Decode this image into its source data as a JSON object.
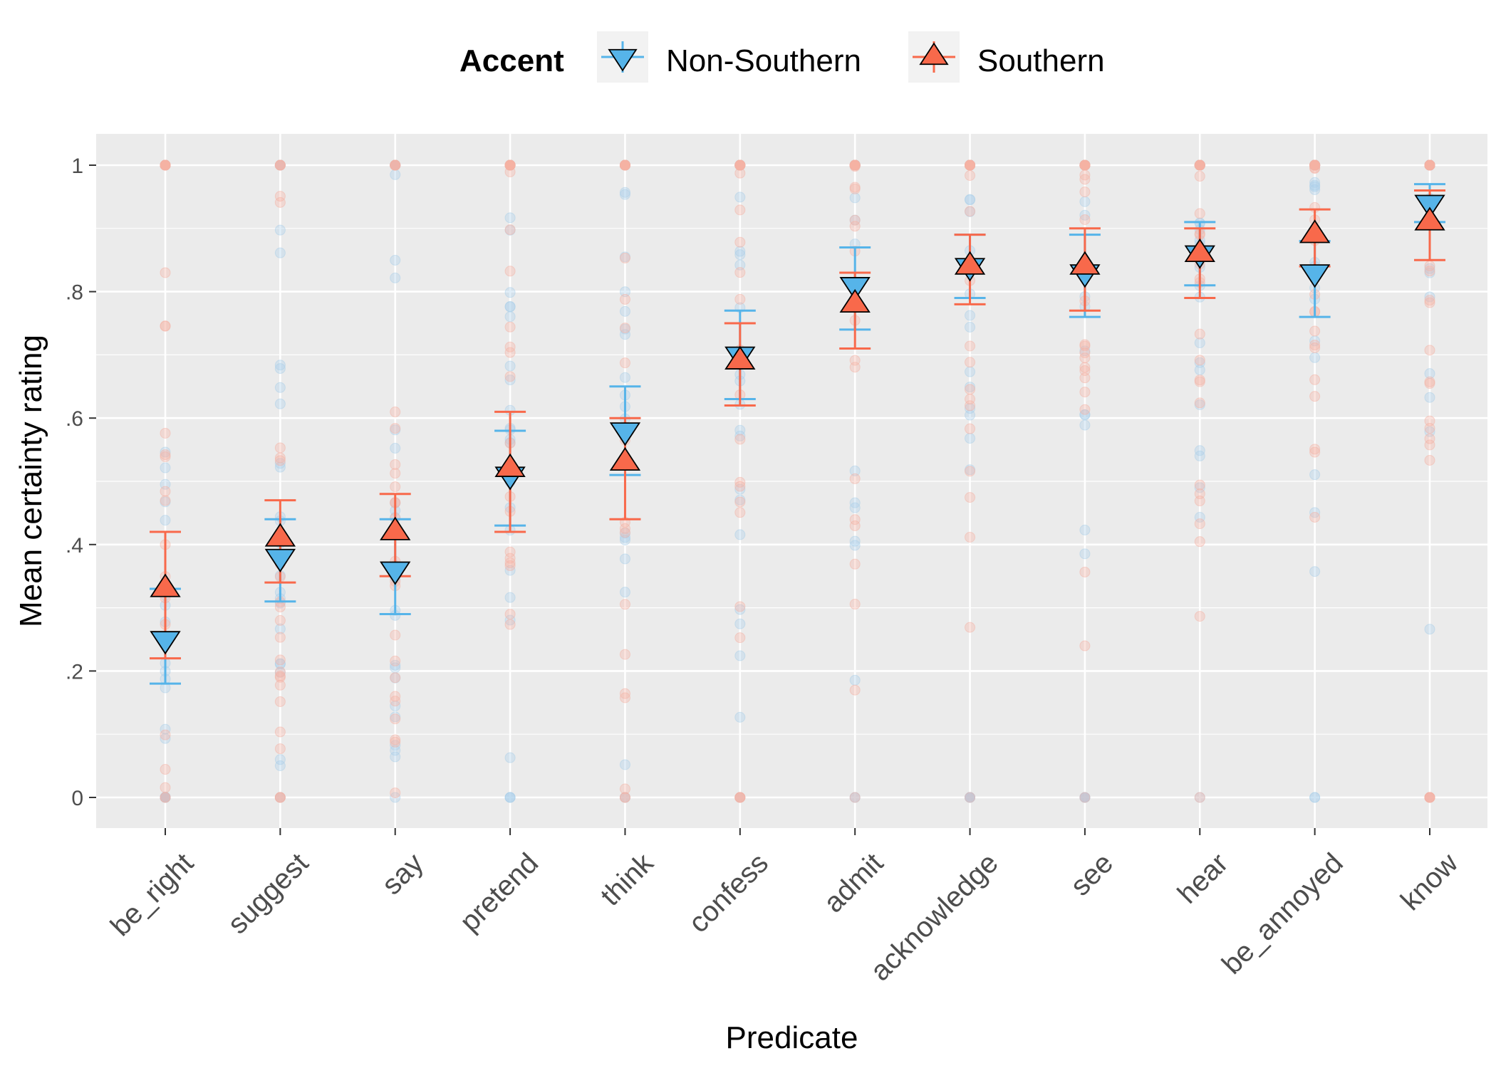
{
  "chart_data": {
    "type": "scatter",
    "title": "",
    "xlabel": "Predicate",
    "ylabel": "Mean certainty rating",
    "ylim": [
      -0.05,
      1.05
    ],
    "y_ticks": [
      0,
      0.2,
      0.4,
      0.6,
      0.8,
      1.0
    ],
    "y_tick_labels": [
      "0",
      ".2",
      ".4",
      ".6",
      ".8",
      "1"
    ],
    "grid": true,
    "legend": {
      "title": "Accent",
      "position": "top"
    },
    "categories": [
      "be_right",
      "suggest",
      "say",
      "pretend",
      "think",
      "confess",
      "admit",
      "acknowledge",
      "see",
      "hear",
      "be_annoyed",
      "know"
    ],
    "series": [
      {
        "name": "Non-Southern",
        "marker": "triangle-down",
        "color": "#56B4E9",
        "errorbar_color": "#56B4E9",
        "values": [
          0.25,
          0.38,
          0.36,
          0.51,
          0.58,
          0.7,
          0.81,
          0.84,
          0.83,
          0.86,
          0.83,
          0.94
        ],
        "ci_low": [
          0.18,
          0.31,
          0.29,
          0.43,
          0.51,
          0.63,
          0.74,
          0.79,
          0.76,
          0.81,
          0.76,
          0.91
        ],
        "ci_high": [
          0.33,
          0.44,
          0.44,
          0.58,
          0.65,
          0.77,
          0.87,
          0.89,
          0.89,
          0.91,
          0.88,
          0.97
        ]
      },
      {
        "name": "Southern",
        "marker": "triangle-up",
        "color": "#F8694B",
        "errorbar_color": "#F8694B",
        "values": [
          0.33,
          0.41,
          0.42,
          0.52,
          0.53,
          0.69,
          0.78,
          0.84,
          0.84,
          0.86,
          0.89,
          0.91
        ],
        "ci_low": [
          0.22,
          0.34,
          0.35,
          0.42,
          0.44,
          0.62,
          0.71,
          0.78,
          0.77,
          0.79,
          0.84,
          0.85
        ],
        "ci_high": [
          0.42,
          0.47,
          0.48,
          0.61,
          0.6,
          0.75,
          0.83,
          0.89,
          0.9,
          0.9,
          0.93,
          0.96
        ]
      }
    ],
    "raw_points_note_color_non_southern": "#a9cfea",
    "raw_points_note_color_southern": "#f5b1a3"
  }
}
